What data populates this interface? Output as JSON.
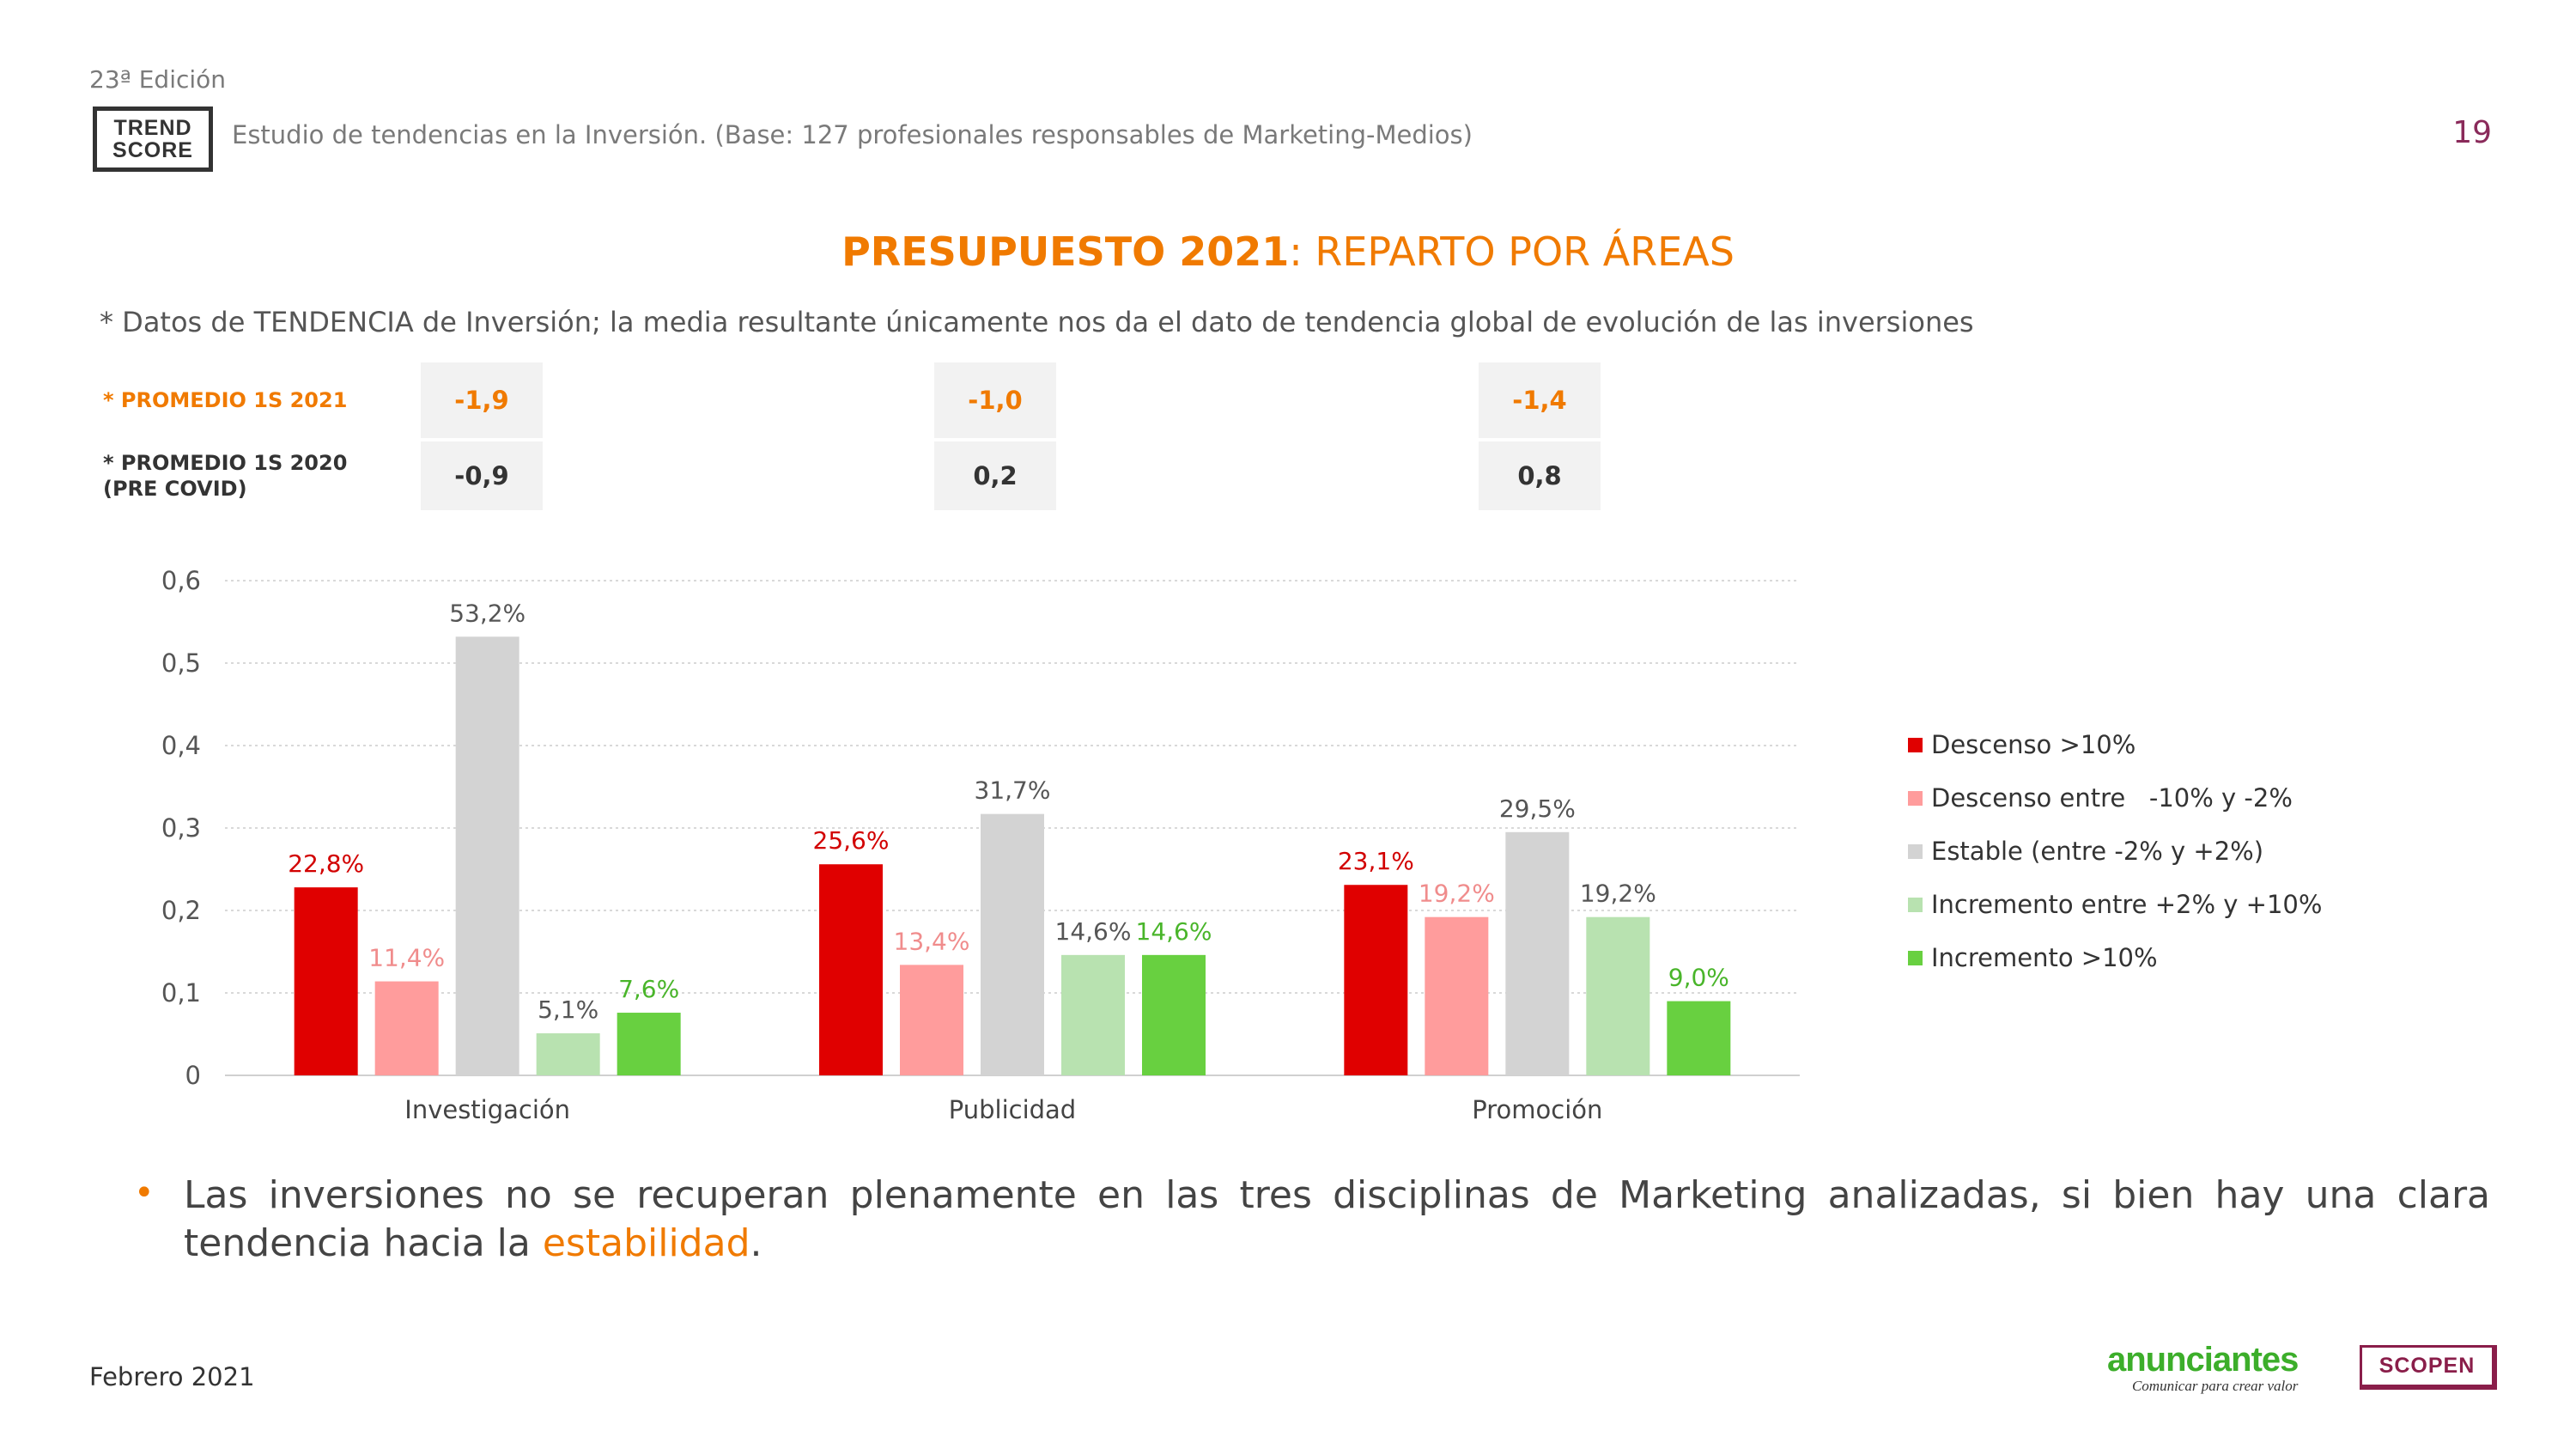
{
  "header": {
    "edition": "23ª Edición",
    "logo_line1": "TREND",
    "logo_line2": "SCORE",
    "study": "Estudio de tendencias en la Inversión. (Base: 127 profesionales responsables de Marketing-Medios)",
    "page_number": "19"
  },
  "title": {
    "strong": "PRESUPUESTO 2021",
    "rest": ": REPARTO POR ÁREAS"
  },
  "subtitle": "* Datos de TENDENCIA de Inversión; la media resultante únicamente nos da el dato de tendencia global de evolución de las inversiones",
  "averages": {
    "label_2021": "* PROMEDIO 1S 2021",
    "label_2020_line1": "* PROMEDIO 1S 2020",
    "label_2020_line2": "(PRE COVID)",
    "values_2021": [
      "-1,9",
      "-1,0",
      "-1,4"
    ],
    "values_2020": [
      "-0,9",
      "0,2",
      "0,8"
    ]
  },
  "chart_data": {
    "type": "bar",
    "categories": [
      "Investigación",
      "Publicidad",
      "Promoción"
    ],
    "ylim": [
      0,
      0.6
    ],
    "y_ticks": [
      "0",
      "0,1",
      "0,2",
      "0,3",
      "0,4",
      "0,5",
      "0,6"
    ],
    "grid": true,
    "legend_position": "right",
    "series": [
      {
        "name": "Descenso >10%",
        "color": "#e00000",
        "label_color": "#d20000",
        "values": [
          0.228,
          0.256,
          0.231
        ],
        "labels": [
          "22,8%",
          "25,6%",
          "23,1%"
        ]
      },
      {
        "name": "Descenso entre   -10% y -2%",
        "color": "#ff9c9c",
        "label_color": "#f08c8c",
        "values": [
          0.114,
          0.134,
          0.192
        ],
        "labels": [
          "11,4%",
          "13,4%",
          "19,2%"
        ]
      },
      {
        "name": "Estable (entre -2% y +2%)",
        "color": "#d3d3d3",
        "label_color": "#555555",
        "values": [
          0.532,
          0.317,
          0.295
        ],
        "labels": [
          "53,2%",
          "31,7%",
          "29,5%"
        ]
      },
      {
        "name": "Incremento entre +2% y +10%",
        "color": "#b8e2b0",
        "label_color": "#555555",
        "values": [
          0.051,
          0.146,
          0.192
        ],
        "labels": [
          "5,1%",
          "14,6%",
          "19,2%"
        ]
      },
      {
        "name": "Incremento >10%",
        "color": "#68d040",
        "label_color": "#49b52a",
        "values": [
          0.076,
          0.146,
          0.09
        ],
        "labels": [
          "7,6%",
          "14,6%",
          "9,0%"
        ]
      }
    ]
  },
  "bullet": {
    "marker": "•",
    "text_before": "Las inversiones no se recuperan plenamente en las tres disciplinas de Marketing analizadas, si bien hay una clara tendencia hacia la ",
    "highlight": "estabilidad",
    "text_after": "."
  },
  "footer": {
    "date": "Febrero 2021",
    "anunciantes_word": "anunciantes",
    "anunciantes_tagline": "Comunicar para crear valor",
    "scopen": "SCOPEN"
  }
}
